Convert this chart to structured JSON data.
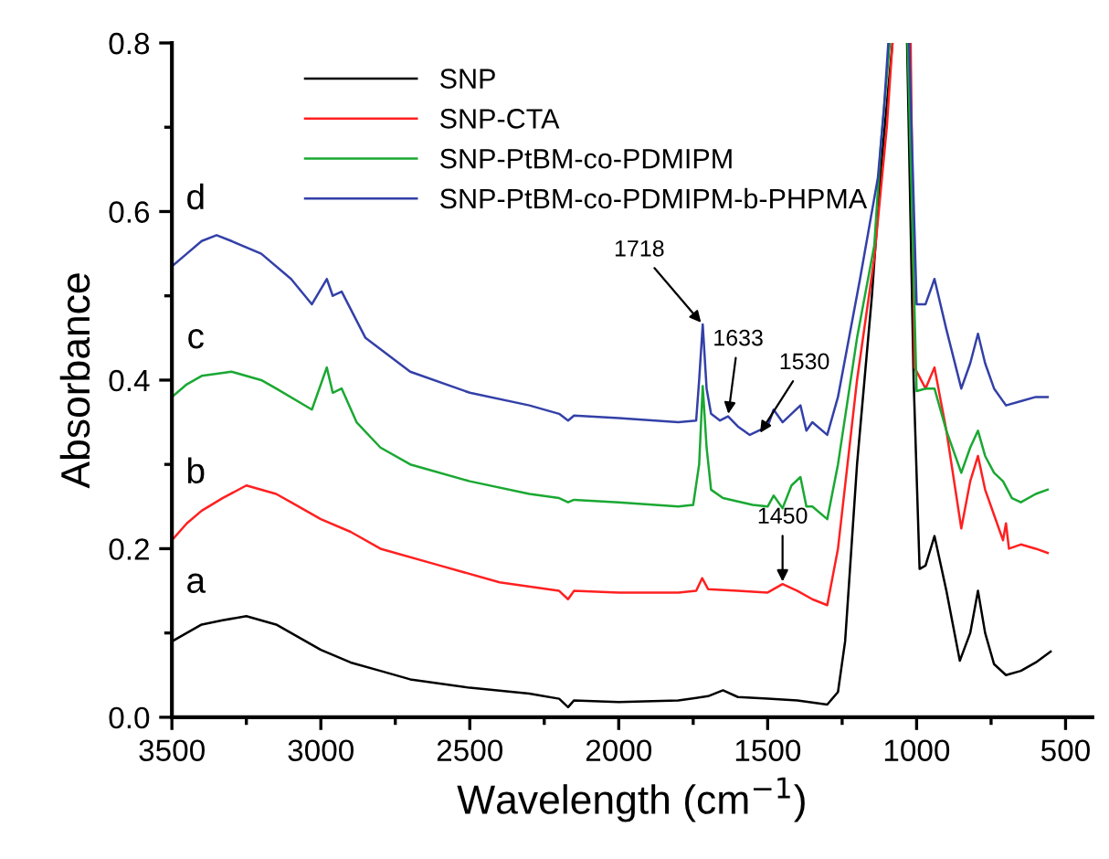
{
  "chart_data": {
    "type": "line",
    "xlabel": "Wavelength (cm$^{−1}$)",
    "ylabel": "Absorbance",
    "xlim": [
      3500,
      410
    ],
    "ylim": [
      0,
      0.8
    ],
    "xticks": [
      3500,
      3000,
      2500,
      2000,
      1500,
      1000,
      500
    ],
    "yticks": [
      {
        "value": 0,
        "label": "0.0"
      },
      0.2,
      0.4,
      0.6,
      0.8
    ],
    "grid": false,
    "legend": "top",
    "marker": "none",
    "line_style": "solid",
    "series": [
      {
        "name": "SNP",
        "color": "#000000",
        "x": [
          3500,
          3450,
          3400,
          3330,
          3250,
          3150,
          3100,
          3000,
          2900,
          2800,
          2700,
          2500,
          2300,
          2200,
          2170,
          2150,
          2000,
          1800,
          1700,
          1650,
          1600,
          1500,
          1400,
          1300,
          1264,
          1240,
          1200,
          1150,
          1120,
          1081,
          1060,
          1032,
          1010,
          990,
          970,
          940,
          900,
          855,
          820,
          794,
          770,
          740,
          700,
          650,
          600,
          550
        ],
        "values": [
          0.09,
          0.1,
          0.11,
          0.115,
          0.12,
          0.11,
          0.1,
          0.08,
          0.065,
          0.055,
          0.045,
          0.035,
          0.028,
          0.022,
          0.012,
          0.02,
          0.018,
          0.02,
          0.025,
          0.032,
          0.024,
          0.022,
          0.02,
          0.015,
          0.03,
          0.09,
          0.3,
          0.5,
          0.65,
          0.8,
          null,
          0.8,
          0.4,
          0.176,
          0.18,
          0.215,
          0.15,
          0.067,
          0.1,
          0.15,
          0.1,
          0.063,
          0.05,
          0.055,
          0.065,
          0.078
        ]
      },
      {
        "name": "SNP-CTA",
        "color": "#ff2020",
        "x": [
          3500,
          3450,
          3400,
          3330,
          3250,
          3150,
          3100,
          3000,
          2900,
          2800,
          2600,
          2400,
          2200,
          2170,
          2150,
          2000,
          1800,
          1740,
          1720,
          1700,
          1600,
          1500,
          1450,
          1400,
          1350,
          1300,
          1264,
          1200,
          1142,
          1100,
          1081,
          1060,
          1020,
          1007,
          970,
          940,
          900,
          850,
          820,
          794,
          770,
          740,
          710,
          700,
          690,
          650,
          600,
          560
        ],
        "values": [
          0.21,
          0.23,
          0.245,
          0.26,
          0.275,
          0.265,
          0.255,
          0.235,
          0.22,
          0.2,
          0.18,
          0.16,
          0.15,
          0.14,
          0.15,
          0.148,
          0.148,
          0.15,
          0.165,
          0.152,
          0.15,
          0.148,
          0.158,
          0.15,
          0.14,
          0.133,
          0.2,
          0.4,
          0.545,
          0.7,
          0.8,
          null,
          0.8,
          0.415,
          0.39,
          0.415,
          0.34,
          0.224,
          0.28,
          0.31,
          0.27,
          0.24,
          0.21,
          0.23,
          0.2,
          0.205,
          0.2,
          0.195
        ]
      },
      {
        "name": "SNP-PtBM-co-PDMIPM",
        "color": "#1aa832",
        "x": [
          3500,
          3450,
          3400,
          3300,
          3200,
          3150,
          3030,
          2980,
          2960,
          2930,
          2880,
          2800,
          2700,
          2500,
          2300,
          2200,
          2170,
          2150,
          2000,
          1800,
          1750,
          1730,
          1718,
          1705,
          1690,
          1650,
          1550,
          1500,
          1480,
          1450,
          1420,
          1390,
          1370,
          1350,
          1300,
          1264,
          1200,
          1142,
          1120,
          1090,
          1060,
          1030,
          1000,
          970,
          940,
          900,
          850,
          820,
          794,
          770,
          740,
          710,
          680,
          650,
          600,
          560
        ],
        "values": [
          0.38,
          0.395,
          0.405,
          0.41,
          0.4,
          0.39,
          0.365,
          0.415,
          0.385,
          0.39,
          0.35,
          0.32,
          0.3,
          0.28,
          0.265,
          0.26,
          0.255,
          0.258,
          0.255,
          0.25,
          0.252,
          0.3,
          0.393,
          0.32,
          0.27,
          0.26,
          0.252,
          0.25,
          0.263,
          0.248,
          0.275,
          0.285,
          0.25,
          0.25,
          0.235,
          0.3,
          0.45,
          0.56,
          0.68,
          0.8,
          null,
          0.8,
          0.387,
          0.39,
          0.39,
          0.34,
          0.29,
          0.32,
          0.34,
          0.31,
          0.29,
          0.28,
          0.26,
          0.255,
          0.265,
          0.27
        ]
      },
      {
        "name": "SNP-PtBM-co-PDMIPM-b-PHPMA",
        "color": "#3340a8",
        "x": [
          3500,
          3450,
          3400,
          3350,
          3300,
          3200,
          3100,
          3030,
          2980,
          2960,
          2930,
          2850,
          2700,
          2500,
          2300,
          2200,
          2170,
          2150,
          2000,
          1800,
          1740,
          1730,
          1718,
          1705,
          1690,
          1660,
          1633,
          1600,
          1560,
          1500,
          1480,
          1450,
          1420,
          1390,
          1370,
          1350,
          1300,
          1264,
          1190,
          1130,
          1110,
          1095,
          1060,
          1025,
          1000,
          970,
          940,
          900,
          850,
          820,
          794,
          770,
          740,
          700,
          650,
          600,
          560
        ],
        "values": [
          0.535,
          0.55,
          0.565,
          0.572,
          0.565,
          0.55,
          0.52,
          0.49,
          0.52,
          0.5,
          0.505,
          0.45,
          0.41,
          0.385,
          0.37,
          0.36,
          0.352,
          0.358,
          0.355,
          0.35,
          0.352,
          0.4,
          0.466,
          0.39,
          0.36,
          0.352,
          0.357,
          0.345,
          0.335,
          0.345,
          0.365,
          0.35,
          0.36,
          0.37,
          0.34,
          0.35,
          0.335,
          0.38,
          0.52,
          0.64,
          0.72,
          0.8,
          null,
          0.8,
          0.49,
          0.49,
          0.52,
          0.46,
          0.39,
          0.42,
          0.455,
          0.42,
          0.39,
          0.37,
          0.375,
          0.38,
          0.38
        ]
      }
    ],
    "annotations": [
      {
        "text": "a",
        "x": 3420,
        "y": 0.115
      },
      {
        "text": "b",
        "x": 3420,
        "y": 0.245
      },
      {
        "text": "c",
        "x": 3420,
        "y": 0.405
      },
      {
        "text": "d",
        "x": 3420,
        "y": 0.57
      },
      {
        "text": "1718",
        "x": 1718,
        "y": 0.466
      },
      {
        "text": "1633",
        "x": 1633,
        "y": 0.357
      },
      {
        "text": "1530",
        "x": 1530,
        "y": 0.335
      },
      {
        "text": "1450",
        "x": 1450,
        "y": 0.158
      }
    ]
  }
}
